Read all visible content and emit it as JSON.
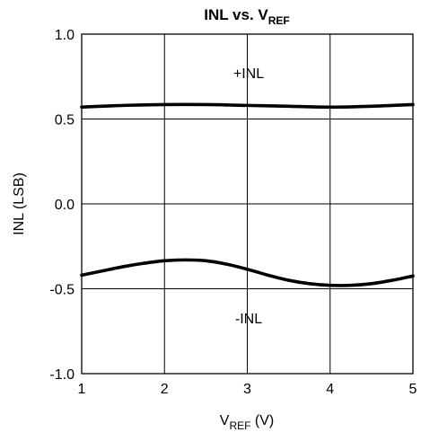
{
  "chart_data": {
    "type": "line",
    "title": {
      "main": "INL vs. V",
      "sub": "REF"
    },
    "xlabel": {
      "main": "V",
      "sub": "REF",
      "suffix": " (V)"
    },
    "ylabel": "INL (LSB)",
    "xlim": [
      1,
      5
    ],
    "ylim": [
      -1.0,
      1.0
    ],
    "x_ticks": [
      1,
      2,
      3,
      4,
      5
    ],
    "x_tick_labels": [
      "1",
      "2",
      "3",
      "4",
      "5"
    ],
    "y_ticks": [
      1.0,
      0.5,
      0.0,
      -0.5,
      -1.0
    ],
    "y_tick_labels": [
      "1.0",
      "0.5",
      "0.0",
      "-0.5",
      "-1.0"
    ],
    "grid": true,
    "legend": "none",
    "annotations": [
      {
        "text": "+INL",
        "series": "+INL"
      },
      {
        "text": "-INL",
        "series": "-INL"
      }
    ],
    "series": [
      {
        "name": "+INL",
        "x": [
          1.0,
          1.5,
          2.0,
          2.5,
          3.0,
          3.5,
          4.0,
          4.5,
          5.0
        ],
        "y": [
          0.57,
          0.58,
          0.585,
          0.585,
          0.58,
          0.575,
          0.57,
          0.575,
          0.585
        ]
      },
      {
        "name": "-INL",
        "x": [
          1.0,
          1.25,
          1.5,
          1.75,
          2.0,
          2.25,
          2.5,
          2.75,
          3.0,
          3.25,
          3.5,
          3.75,
          4.0,
          4.25,
          4.5,
          4.75,
          5.0
        ],
        "y": [
          -0.42,
          -0.395,
          -0.37,
          -0.35,
          -0.335,
          -0.33,
          -0.335,
          -0.355,
          -0.385,
          -0.42,
          -0.45,
          -0.47,
          -0.48,
          -0.48,
          -0.47,
          -0.45,
          -0.425
        ]
      }
    ]
  }
}
